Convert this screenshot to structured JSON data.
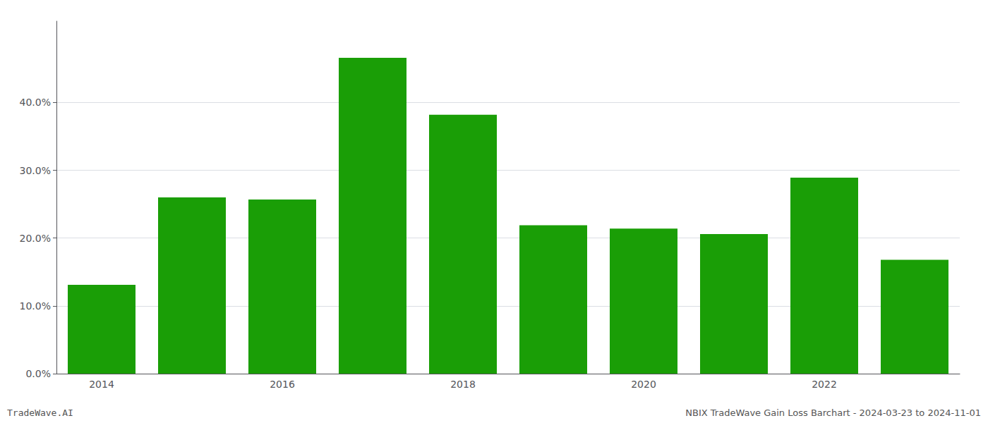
{
  "chart_data": {
    "type": "bar",
    "categories": [
      "2014",
      null,
      "2016",
      null,
      "2018",
      null,
      "2020",
      null,
      "2022",
      null
    ],
    "values": [
      0.131,
      0.26,
      0.257,
      0.466,
      0.382,
      0.219,
      0.214,
      0.206,
      0.289,
      0.168
    ],
    "color": "#1a9e06",
    "ylim": [
      0.0,
      0.52
    ],
    "yticks": [
      {
        "value": 0.0,
        "label": "0.0%"
      },
      {
        "value": 0.1,
        "label": "10.0%"
      },
      {
        "value": 0.2,
        "label": "20.0%"
      },
      {
        "value": 0.3,
        "label": "30.0%"
      },
      {
        "value": 0.4,
        "label": "40.0%"
      }
    ],
    "grid": true,
    "annotations": [
      "TradeWave.AI",
      "NBIX TradeWave Gain Loss Barchart - 2024-03-23 to 2024-11-01"
    ]
  }
}
